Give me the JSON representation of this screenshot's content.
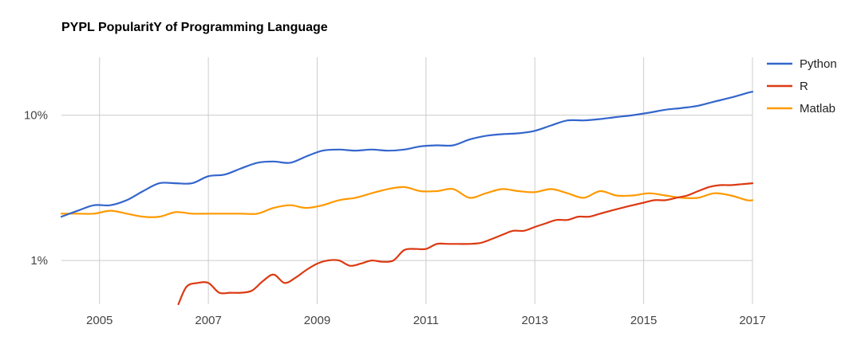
{
  "chart_data": {
    "type": "line",
    "title": "PYPL PopularitY of Programming Language",
    "xlabel": "",
    "ylabel": "",
    "y_scale": "log",
    "xlim": [
      2004.3,
      2017.0
    ],
    "ylim": [
      0.5,
      25
    ],
    "grid": true,
    "legend_position": "right",
    "x_ticks": [
      2005,
      2007,
      2009,
      2011,
      2013,
      2015,
      2017
    ],
    "x_tick_labels": [
      "2005",
      "2007",
      "2009",
      "2011",
      "2013",
      "2015",
      "2017"
    ],
    "y_ticks": [
      1,
      10
    ],
    "y_tick_labels": [
      "1%",
      "10%"
    ],
    "series": [
      {
        "name": "Python",
        "color": "#3366cc",
        "x": [
          2004.3,
          2004.6,
          2004.9,
          2005.2,
          2005.5,
          2005.8,
          2006.1,
          2006.4,
          2006.7,
          2007.0,
          2007.3,
          2007.6,
          2007.9,
          2008.2,
          2008.5,
          2008.8,
          2009.1,
          2009.4,
          2009.7,
          2010.0,
          2010.3,
          2010.6,
          2010.9,
          2011.2,
          2011.5,
          2011.8,
          2012.1,
          2012.4,
          2012.7,
          2013.0,
          2013.3,
          2013.6,
          2013.9,
          2014.2,
          2014.5,
          2014.8,
          2015.1,
          2015.4,
          2015.7,
          2016.0,
          2016.3,
          2016.6,
          2016.9,
          2017.0
        ],
        "values": [
          2.0,
          2.2,
          2.4,
          2.4,
          2.6,
          3.0,
          3.4,
          3.4,
          3.4,
          3.8,
          3.9,
          4.3,
          4.7,
          4.8,
          4.7,
          5.2,
          5.7,
          5.8,
          5.7,
          5.8,
          5.7,
          5.8,
          6.1,
          6.2,
          6.2,
          6.8,
          7.2,
          7.4,
          7.5,
          7.8,
          8.5,
          9.2,
          9.2,
          9.4,
          9.7,
          10.0,
          10.4,
          10.9,
          11.2,
          11.6,
          12.4,
          13.2,
          14.2,
          14.5
        ]
      },
      {
        "name": "R",
        "color": "#dc3912",
        "x": [
          2006.45,
          2006.6,
          2006.8,
          2007.0,
          2007.2,
          2007.4,
          2007.6,
          2007.8,
          2008.0,
          2008.2,
          2008.4,
          2008.6,
          2008.8,
          2009.0,
          2009.2,
          2009.4,
          2009.6,
          2009.8,
          2010.0,
          2010.2,
          2010.4,
          2010.6,
          2010.8,
          2011.0,
          2011.2,
          2011.4,
          2011.6,
          2011.8,
          2012.0,
          2012.2,
          2012.4,
          2012.6,
          2012.8,
          2013.0,
          2013.2,
          2013.4,
          2013.6,
          2013.8,
          2014.0,
          2014.2,
          2014.4,
          2014.6,
          2014.8,
          2015.0,
          2015.2,
          2015.4,
          2015.6,
          2015.8,
          2016.0,
          2016.2,
          2016.4,
          2016.6,
          2016.8,
          2017.0
        ],
        "values": [
          0.5,
          0.66,
          0.7,
          0.7,
          0.6,
          0.6,
          0.6,
          0.62,
          0.72,
          0.8,
          0.7,
          0.76,
          0.86,
          0.95,
          1.0,
          1.0,
          0.92,
          0.95,
          1.0,
          0.98,
          1.0,
          1.18,
          1.2,
          1.2,
          1.3,
          1.3,
          1.3,
          1.3,
          1.32,
          1.4,
          1.5,
          1.6,
          1.6,
          1.7,
          1.8,
          1.9,
          1.9,
          2.0,
          2.0,
          2.1,
          2.2,
          2.3,
          2.4,
          2.5,
          2.6,
          2.6,
          2.7,
          2.8,
          3.0,
          3.2,
          3.3,
          3.3,
          3.35,
          3.4
        ]
      },
      {
        "name": "Matlab",
        "color": "#ff9900",
        "x": [
          2004.3,
          2004.6,
          2004.9,
          2005.2,
          2005.5,
          2005.8,
          2006.1,
          2006.4,
          2006.7,
          2007.0,
          2007.3,
          2007.6,
          2007.9,
          2008.2,
          2008.5,
          2008.8,
          2009.1,
          2009.4,
          2009.7,
          2010.0,
          2010.3,
          2010.6,
          2010.9,
          2011.2,
          2011.5,
          2011.8,
          2012.1,
          2012.4,
          2012.7,
          2013.0,
          2013.3,
          2013.6,
          2013.9,
          2014.2,
          2014.5,
          2014.8,
          2015.1,
          2015.4,
          2015.7,
          2016.0,
          2016.3,
          2016.6,
          2016.9,
          2017.0
        ],
        "values": [
          2.1,
          2.1,
          2.1,
          2.2,
          2.1,
          2.0,
          2.0,
          2.15,
          2.1,
          2.1,
          2.1,
          2.1,
          2.1,
          2.3,
          2.4,
          2.3,
          2.4,
          2.6,
          2.7,
          2.9,
          3.1,
          3.2,
          3.0,
          3.0,
          3.1,
          2.7,
          2.9,
          3.1,
          3.0,
          2.95,
          3.1,
          2.9,
          2.7,
          3.0,
          2.8,
          2.8,
          2.9,
          2.8,
          2.7,
          2.7,
          2.9,
          2.8,
          2.6,
          2.6
        ]
      }
    ]
  }
}
